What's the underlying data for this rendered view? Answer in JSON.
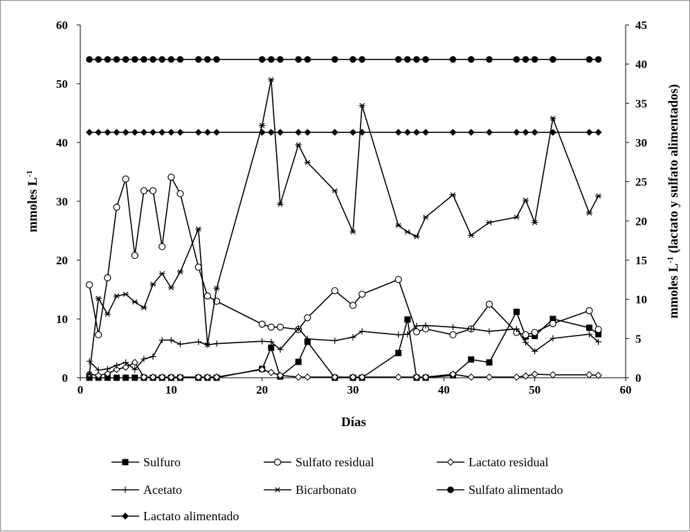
{
  "chart_data": {
    "type": "line",
    "xlabel": "Días",
    "ylabel_left_main": "mmoles L",
    "ylabel_left_sup": "-1",
    "ylabel_right_main": "mmoles L",
    "ylabel_right_sup": "-1",
    "ylabel_right_rest": " (lactato y sulfato alimentados)",
    "xlim": [
      0,
      60
    ],
    "ylim_left": [
      0,
      60
    ],
    "ylim_right": [
      0,
      45
    ],
    "xticks": [
      0,
      10,
      20,
      30,
      40,
      50,
      60
    ],
    "yticks_left": [
      0,
      10,
      20,
      30,
      40,
      50,
      60
    ],
    "yticks_right": [
      0,
      5,
      10,
      15,
      20,
      25,
      30,
      35,
      40,
      45
    ],
    "legend_position": "bottom",
    "series": [
      {
        "name": "Sulfuro",
        "axis": "left",
        "marker": "square-filled",
        "x": [
          1,
          2,
          3,
          4,
          5,
          6,
          7,
          8,
          9,
          10,
          11,
          13,
          14,
          15,
          20,
          21,
          22,
          24,
          25,
          28,
          30,
          31,
          35,
          36,
          37,
          38,
          41,
          43,
          45,
          48,
          49,
          50,
          52,
          56,
          57
        ],
        "y": [
          0,
          0,
          0,
          0,
          0,
          0,
          0,
          0,
          0,
          0,
          0,
          0,
          0,
          0,
          1.5,
          5.1,
          0.2,
          2.7,
          6.1,
          0,
          0,
          0,
          4.2,
          9.9,
          0,
          0,
          0.4,
          3.1,
          2.6,
          11.2,
          7.0,
          7.1,
          10.0,
          8.5,
          7.4
        ]
      },
      {
        "name": "Sulfato residual",
        "axis": "left",
        "marker": "circle-open",
        "x": [
          1,
          2,
          3,
          4,
          5,
          6,
          7,
          8,
          9,
          10,
          11,
          13,
          14,
          15,
          20,
          21,
          22,
          24,
          25,
          28,
          30,
          31,
          35,
          37,
          38,
          41,
          43,
          45,
          48,
          49,
          50,
          52,
          56,
          57
        ],
        "y": [
          15.8,
          7.3,
          17.0,
          29.0,
          33.8,
          20.8,
          31.8,
          31.8,
          22.3,
          34.1,
          31.3,
          18.8,
          13.9,
          13.0,
          9.1,
          8.6,
          8.6,
          8.2,
          10.2,
          14.8,
          12.3,
          14.2,
          16.7,
          7.8,
          8.3,
          7.3,
          8.3,
          12.5,
          7.7,
          7.3,
          7.7,
          9.2,
          11.4,
          8.2
        ]
      },
      {
        "name": "Lactato residual",
        "axis": "left",
        "marker": "diamond-open",
        "x": [
          1,
          2,
          3,
          4,
          5,
          6,
          7,
          8,
          9,
          10,
          11,
          13,
          14,
          15,
          20,
          21,
          22,
          24,
          25,
          28,
          30,
          31,
          35,
          37,
          38,
          41,
          43,
          45,
          48,
          49,
          50,
          52,
          56,
          57
        ],
        "y": [
          0.6,
          0.4,
          0.7,
          1.4,
          1.8,
          2.6,
          0.1,
          0.1,
          0.1,
          0.1,
          0.1,
          0.1,
          0.1,
          0.1,
          1.4,
          0.9,
          0.4,
          0.1,
          0.1,
          0.1,
          0.1,
          0.1,
          0.1,
          0.1,
          0.1,
          0.6,
          0.1,
          0.1,
          0.1,
          0.3,
          0.6,
          0.5,
          0.5,
          0.4
        ]
      },
      {
        "name": "Acetato",
        "axis": "left",
        "marker": "plus",
        "x": [
          1,
          2,
          3,
          4,
          5,
          6,
          7,
          8,
          9,
          10,
          11,
          13,
          14,
          15,
          20,
          21,
          22,
          24,
          25,
          28,
          30,
          31,
          35,
          36,
          37,
          38,
          41,
          43,
          45,
          48,
          49,
          50,
          52,
          56,
          57
        ],
        "y": [
          2.8,
          1.3,
          1.5,
          2.1,
          2.6,
          1.4,
          3.2,
          3.6,
          6.4,
          6.4,
          5.7,
          6.1,
          5.6,
          5.8,
          6.2,
          6.1,
          4.8,
          8.4,
          6.6,
          6.3,
          6.9,
          7.9,
          7.3,
          7.4,
          8.8,
          8.9,
          8.6,
          8.3,
          7.9,
          8.3,
          6.0,
          4.5,
          6.7,
          7.4,
          6.1
        ]
      },
      {
        "name": "Bicarbonato",
        "axis": "left",
        "marker": "asterisk",
        "x": [
          1,
          2,
          3,
          4,
          5,
          6,
          7,
          8,
          9,
          10,
          11,
          13,
          14,
          15,
          20,
          21,
          22,
          24,
          25,
          28,
          30,
          31,
          35,
          36,
          37,
          38,
          41,
          43,
          45,
          48,
          49,
          50,
          52,
          56,
          57
        ],
        "y": [
          0.6,
          13.5,
          10.8,
          13.9,
          14.2,
          12.9,
          11.9,
          15.9,
          17.7,
          15.3,
          18.0,
          25.3,
          5.6,
          15.2,
          42.9,
          50.7,
          29.5,
          39.6,
          36.6,
          31.8,
          24.8,
          46.3,
          25.9,
          24.8,
          24.0,
          27.3,
          31.1,
          24.2,
          26.4,
          27.3,
          30.2,
          26.4,
          44.1,
          28.0,
          30.9
        ]
      },
      {
        "name": "Sulfato alimentado",
        "axis": "right",
        "marker": "circle-filled",
        "x": [
          1,
          2,
          3,
          4,
          5,
          6,
          7,
          8,
          9,
          10,
          11,
          13,
          14,
          15,
          20,
          21,
          22,
          24,
          25,
          28,
          30,
          31,
          35,
          36,
          37,
          38,
          41,
          43,
          45,
          48,
          49,
          50,
          52,
          56,
          57
        ],
        "y": [
          40.6,
          40.6,
          40.6,
          40.6,
          40.6,
          40.6,
          40.6,
          40.6,
          40.6,
          40.6,
          40.6,
          40.6,
          40.6,
          40.6,
          40.6,
          40.6,
          40.6,
          40.6,
          40.6,
          40.6,
          40.6,
          40.6,
          40.6,
          40.6,
          40.6,
          40.6,
          40.6,
          40.6,
          40.6,
          40.6,
          40.6,
          40.6,
          40.6,
          40.6,
          40.6
        ]
      },
      {
        "name": "Lactato alimentado",
        "axis": "right",
        "marker": "diamond-filled",
        "x": [
          1,
          2,
          3,
          4,
          5,
          6,
          7,
          8,
          9,
          10,
          11,
          13,
          14,
          15,
          20,
          21,
          22,
          24,
          25,
          28,
          30,
          31,
          35,
          36,
          37,
          38,
          41,
          43,
          45,
          48,
          49,
          50,
          52,
          56,
          57
        ],
        "y": [
          31.3,
          31.3,
          31.3,
          31.3,
          31.3,
          31.3,
          31.3,
          31.3,
          31.3,
          31.3,
          31.3,
          31.3,
          31.3,
          31.3,
          31.3,
          31.3,
          31.3,
          31.3,
          31.3,
          31.3,
          31.3,
          31.3,
          31.3,
          31.3,
          31.3,
          31.3,
          31.3,
          31.3,
          31.3,
          31.3,
          31.3,
          31.3,
          31.3,
          31.3,
          31.3
        ]
      }
    ]
  }
}
